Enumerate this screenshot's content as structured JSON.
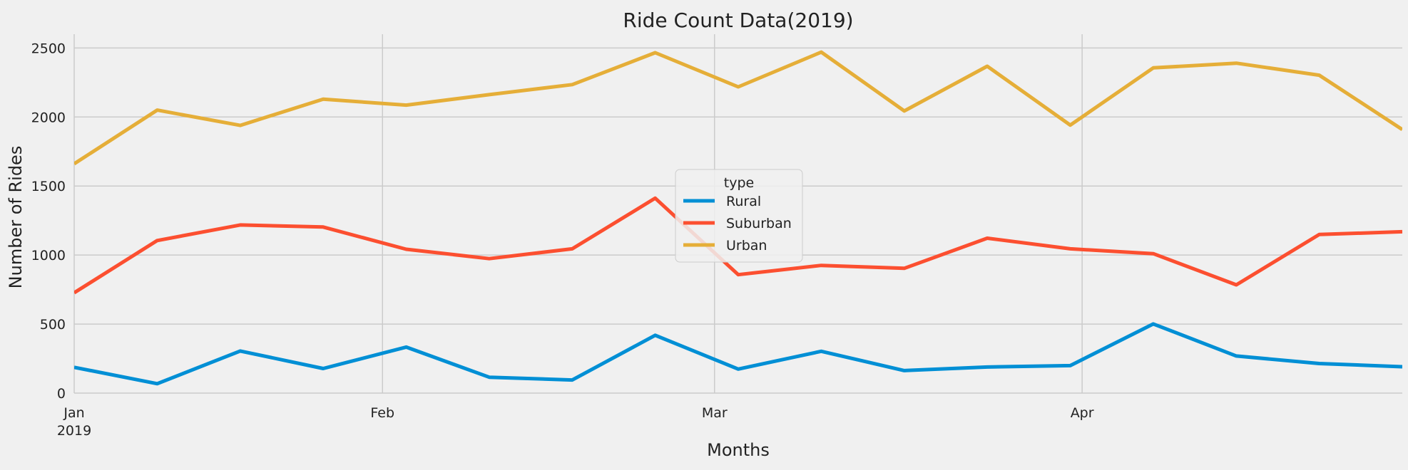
{
  "chart_data": {
    "type": "line",
    "title": "Ride Count Data(2019)",
    "xlabel": "Months",
    "ylabel": "Number of Rides",
    "ylim": [
      0,
      2600
    ],
    "y_ticks": [
      "0",
      "500",
      "1000",
      "1500",
      "2000",
      "2500"
    ],
    "x_range": [
      "2019-01-06",
      "2019-04-28"
    ],
    "x_ticks": [
      {
        "date": "2019-01-01",
        "label": "Jan",
        "sublabel": "2019"
      },
      {
        "date": "2019-02-01",
        "label": "Feb",
        "sublabel": ""
      },
      {
        "date": "2019-03-01",
        "label": "Mar",
        "sublabel": ""
      },
      {
        "date": "2019-04-01",
        "label": "Apr",
        "sublabel": ""
      }
    ],
    "x": [
      "2019-01-06",
      "2019-01-13",
      "2019-01-20",
      "2019-01-27",
      "2019-02-03",
      "2019-02-10",
      "2019-02-17",
      "2019-02-24",
      "2019-03-03",
      "2019-03-10",
      "2019-03-17",
      "2019-03-24",
      "2019-03-31",
      "2019-04-07",
      "2019-04-14",
      "2019-04-21",
      "2019-04-28"
    ],
    "grid": true,
    "legend": {
      "title": "type",
      "position": "center"
    },
    "series": [
      {
        "name": "Rural",
        "color": "#008fd5",
        "values": [
          187,
          68,
          305,
          178,
          333,
          115,
          95,
          419,
          174,
          303,
          163,
          189,
          199,
          501,
          269,
          214,
          191
        ]
      },
      {
        "name": "Suburban",
        "color": "#fc4f30",
        "values": [
          727,
          1105,
          1218,
          1203,
          1042,
          974,
          1045,
          1412,
          858,
          925,
          904,
          1122,
          1045,
          1010,
          784,
          1149,
          1169
        ]
      },
      {
        "name": "Urban",
        "color": "#e5ae38",
        "values": [
          1661,
          2050,
          1939,
          2129,
          2086,
          2162,
          2235,
          2466,
          2218,
          2470,
          2044,
          2368,
          1941,
          2356,
          2390,
          2303,
          1909
        ]
      }
    ]
  }
}
